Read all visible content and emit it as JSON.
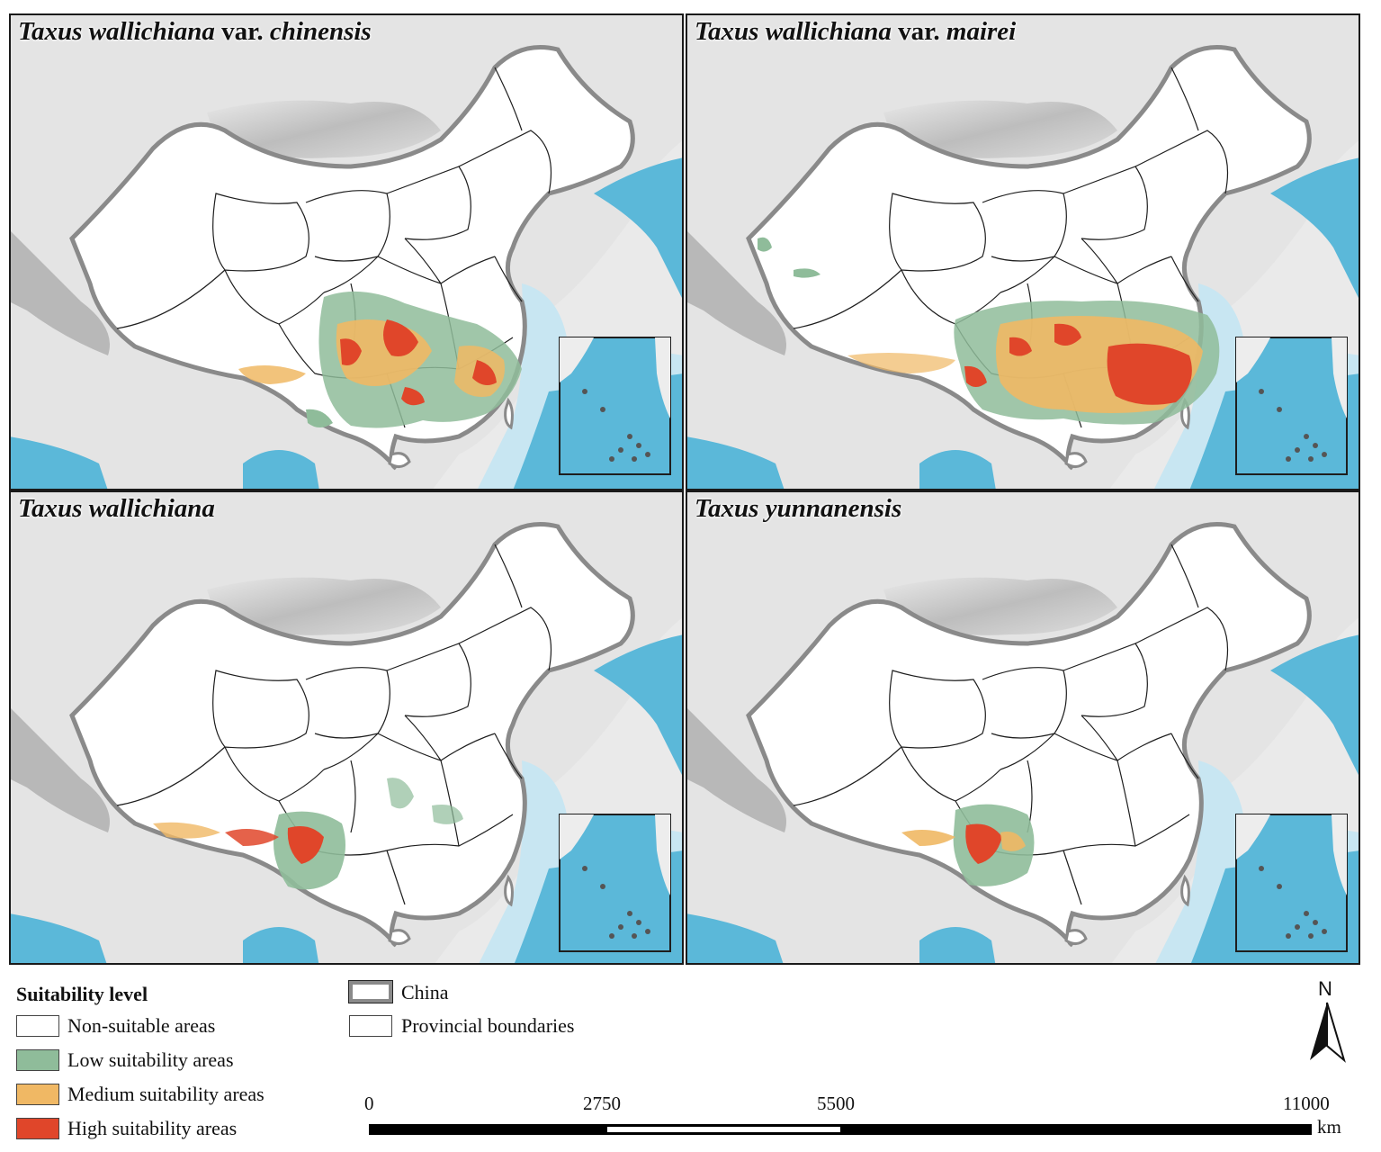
{
  "panels": [
    {
      "title_a": "Taxus wallichiana",
      "title_b": " var. ",
      "title_c": "chinensis",
      "key": "chinensis"
    },
    {
      "title_a": "Taxus wallichiana",
      "title_b": " var. ",
      "title_c": "mairei",
      "key": "mairei"
    },
    {
      "title_a": "Taxus wallichiana",
      "title_b": "",
      "title_c": "",
      "key": "wallichiana"
    },
    {
      "title_a": "Taxus yunnanensis",
      "title_b": "",
      "title_c": "",
      "key": "yunnanensis"
    }
  ],
  "legend": {
    "title": "Suitability level",
    "items": [
      {
        "label": "Non-suitable areas",
        "color": "#ffffff"
      },
      {
        "label": "Low suitability areas",
        "color": "#8fbc9a"
      },
      {
        "label": "Medium suitability areas",
        "color": "#f0b864"
      },
      {
        "label": "High suitability areas",
        "color": "#e0462a"
      }
    ],
    "boundaries": [
      {
        "label": "China",
        "style": "thick gray outline"
      },
      {
        "label": "Provincial boundaries",
        "style": "thin outline"
      }
    ]
  },
  "scale_bar": {
    "ticks": [
      "0",
      "2750",
      "5500",
      "11000"
    ],
    "unit": "km"
  },
  "north_arrow": {
    "label": "N"
  },
  "colors": {
    "sea": "#5bb8d9",
    "shallow_sea": "#c8e6f2",
    "relief": "#cfcfcf",
    "china_outline": "#8a8a8a",
    "low": "#8fbc9a",
    "medium": "#f0b864",
    "high": "#e0462a"
  }
}
